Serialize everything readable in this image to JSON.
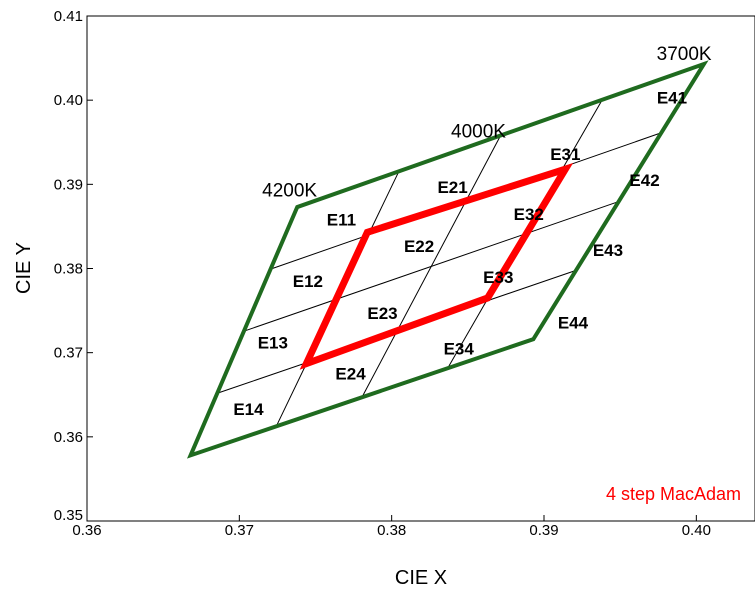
{
  "chart_data": {
    "type": "scatter",
    "title": "",
    "xlabel": "CIE X",
    "ylabel": "CIE Y",
    "xlim": [
      0.36,
      0.405
    ],
    "ylim": [
      0.35,
      0.41
    ],
    "x_ticks": [
      {
        "value": 0.36,
        "label": "0.36"
      },
      {
        "value": 0.37,
        "label": "0.37"
      },
      {
        "value": 0.38,
        "label": "0.38"
      },
      {
        "value": 0.39,
        "label": "0.39"
      },
      {
        "value": 0.4,
        "label": "0.40"
      }
    ],
    "y_ticks": [
      {
        "value": 0.35,
        "label": "0.35"
      },
      {
        "value": 0.36,
        "label": "0.36"
      },
      {
        "value": 0.37,
        "label": "0.37"
      },
      {
        "value": 0.38,
        "label": "0.38"
      },
      {
        "value": 0.39,
        "label": "0.39"
      },
      {
        "value": 0.4,
        "label": "0.40"
      },
      {
        "value": 0.41,
        "label": "0.41"
      }
    ],
    "grid": false,
    "outer_quadrangle": {
      "color": "#1f6b1f",
      "vertices": [
        {
          "x": 0.3738,
          "y": 0.3873
        },
        {
          "x": 0.4005,
          "y": 0.4043
        },
        {
          "x": 0.3893,
          "y": 0.3716
        },
        {
          "x": 0.3668,
          "y": 0.3578
        }
      ]
    },
    "macadam_quadrangle": {
      "color": "#ff0000",
      "vertices": [
        {
          "x": 0.3784,
          "y": 0.3843
        },
        {
          "x": 0.3914,
          "y": 0.3918
        },
        {
          "x": 0.3863,
          "y": 0.3765
        },
        {
          "x": 0.3744,
          "y": 0.3687
        }
      ]
    },
    "grid_divisions": 4,
    "cct_labels": [
      {
        "text": "4200K",
        "x": 0.3733,
        "y": 0.3894
      },
      {
        "text": "4000K",
        "x": 0.3857,
        "y": 0.3964
      },
      {
        "text": "3700K",
        "x": 0.3992,
        "y": 0.4056
      }
    ],
    "bins": [
      {
        "name": "E11",
        "x": 0.3767,
        "y": 0.3858
      },
      {
        "name": "E21",
        "x": 0.384,
        "y": 0.3897
      },
      {
        "name": "E31",
        "x": 0.3914,
        "y": 0.3936
      },
      {
        "name": "E41",
        "x": 0.3984,
        "y": 0.4003
      },
      {
        "name": "E12",
        "x": 0.3745,
        "y": 0.3785
      },
      {
        "name": "E22",
        "x": 0.3818,
        "y": 0.3827
      },
      {
        "name": "E32",
        "x": 0.389,
        "y": 0.3865
      },
      {
        "name": "E42",
        "x": 0.3966,
        "y": 0.3905
      },
      {
        "name": "E13",
        "x": 0.3722,
        "y": 0.3712
      },
      {
        "name": "E23",
        "x": 0.3794,
        "y": 0.3747
      },
      {
        "name": "E33",
        "x": 0.387,
        "y": 0.379
      },
      {
        "name": "E43",
        "x": 0.3942,
        "y": 0.3822
      },
      {
        "name": "E14",
        "x": 0.3706,
        "y": 0.3633
      },
      {
        "name": "E24",
        "x": 0.3773,
        "y": 0.3675
      },
      {
        "name": "E34",
        "x": 0.3844,
        "y": 0.3705
      },
      {
        "name": "E44",
        "x": 0.3919,
        "y": 0.3736
      }
    ],
    "annotation": {
      "text": "4 step MacAdam",
      "color": "#ff0000",
      "position": "bottom-right"
    }
  }
}
